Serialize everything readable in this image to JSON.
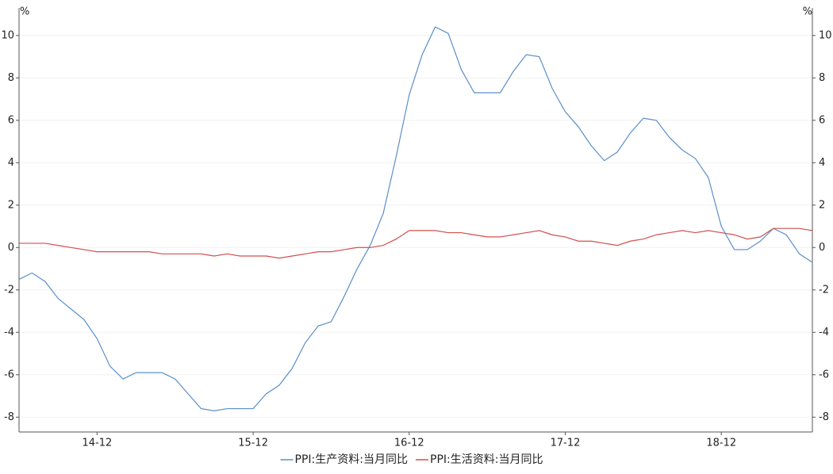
{
  "chart_data": {
    "type": "line",
    "y_label": "%",
    "y2_label": "%",
    "categories": [
      null,
      null,
      null,
      null,
      null,
      null,
      "14-12",
      null,
      null,
      null,
      null,
      null,
      null,
      null,
      null,
      null,
      null,
      null,
      "15-12",
      null,
      null,
      null,
      null,
      null,
      null,
      null,
      null,
      null,
      null,
      null,
      "16-12",
      null,
      null,
      null,
      null,
      null,
      null,
      null,
      null,
      null,
      null,
      null,
      "17-12",
      null,
      null,
      null,
      null,
      null,
      null,
      null,
      null,
      null,
      null,
      null,
      "18-12",
      null,
      null,
      null,
      null,
      null,
      null,
      null
    ],
    "series": [
      {
        "name": "PPI:生产资料:当月同比",
        "color": "#5b8fc9",
        "values": [
          -1.5,
          -1.2,
          -1.6,
          -2.4,
          -2.9,
          -3.4,
          -4.3,
          -5.6,
          -6.2,
          -5.9,
          -5.9,
          -5.9,
          -6.2,
          -6.9,
          -7.6,
          -7.7,
          -7.6,
          -7.6,
          -7.6,
          -6.9,
          -6.5,
          -5.7,
          -4.5,
          -3.7,
          -3.5,
          -2.3,
          -1.0,
          0.1,
          1.6,
          4.3,
          7.2,
          9.1,
          10.4,
          10.1,
          8.4,
          7.3,
          7.3,
          7.3,
          8.3,
          9.1,
          9.0,
          7.5,
          6.4,
          5.7,
          4.8,
          4.1,
          4.5,
          5.4,
          6.1,
          6.0,
          5.2,
          4.6,
          4.2,
          3.3,
          1.0,
          -0.1,
          -0.1,
          0.3,
          0.9,
          0.6,
          -0.3,
          -0.7
        ]
      },
      {
        "name": "PPI:生活资料:当月同比",
        "color": "#d0504f",
        "values": [
          0.2,
          0.2,
          0.2,
          0.1,
          0.0,
          -0.1,
          -0.2,
          -0.2,
          -0.2,
          -0.2,
          -0.2,
          -0.3,
          -0.3,
          -0.3,
          -0.3,
          -0.4,
          -0.3,
          -0.4,
          -0.4,
          -0.4,
          -0.5,
          -0.4,
          -0.3,
          -0.2,
          -0.2,
          -0.1,
          0.0,
          0.0,
          0.1,
          0.4,
          0.8,
          0.8,
          0.8,
          0.7,
          0.7,
          0.6,
          0.5,
          0.5,
          0.6,
          0.7,
          0.8,
          0.6,
          0.5,
          0.3,
          0.3,
          0.2,
          0.1,
          0.3,
          0.4,
          0.6,
          0.7,
          0.8,
          0.7,
          0.8,
          0.7,
          0.6,
          0.4,
          0.5,
          0.9,
          0.9,
          0.9,
          0.8
        ]
      }
    ],
    "ylim": [
      -8.7,
      11.3
    ],
    "yticks": [
      -8,
      -6,
      -4,
      -2,
      0,
      2,
      4,
      6,
      8,
      10
    ],
    "y2lim": [
      -8.7,
      11.3
    ],
    "y2ticks": [
      -8,
      -6,
      -4,
      -2,
      0,
      2,
      4,
      6,
      8,
      10
    ],
    "grid": true,
    "legend": "bottom"
  }
}
